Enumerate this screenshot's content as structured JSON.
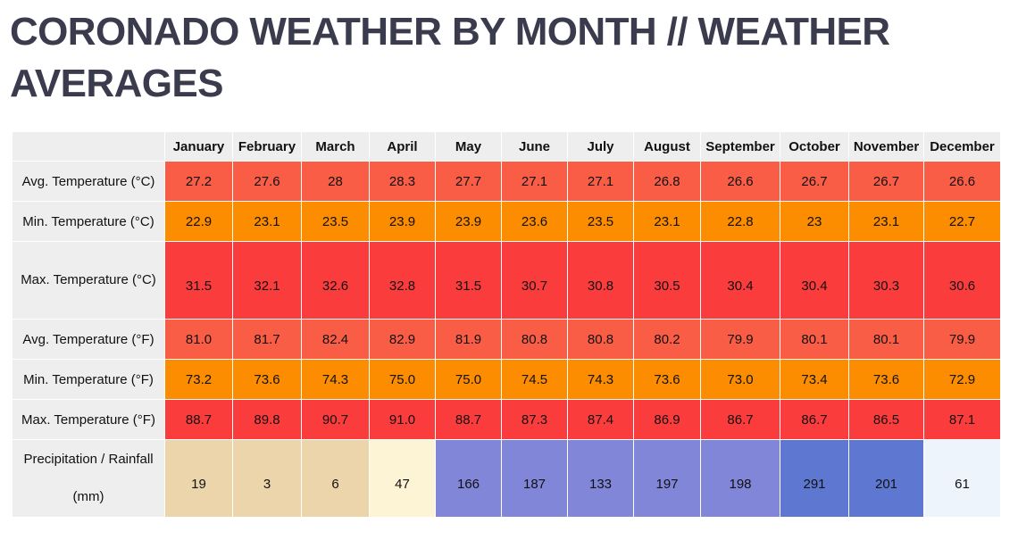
{
  "title": "CORONADO WEATHER BY MONTH // WEATHER AVERAGES",
  "months": [
    "January",
    "February",
    "March",
    "April",
    "May",
    "June",
    "July",
    "August",
    "September",
    "October",
    "November",
    "December"
  ],
  "colors": {
    "avg_temp": "#fa5d45",
    "min_temp": "#fc8c00",
    "max_temp": "#fb3c3d",
    "rain_dry": "#ecd5aa",
    "rain_light": "#fdf4d6",
    "rain_wet": "#8286d9",
    "rain_wettest": "#5e78d1",
    "rain_low": "#eef4fc",
    "header_bg": "#eeeeee",
    "title_color": "#3b3b4e"
  },
  "rows": [
    {
      "label": "Avg. Temperature (°C)",
      "values": [
        "27.2",
        "27.6",
        "28",
        "28.3",
        "27.7",
        "27.1",
        "27.1",
        "26.8",
        "26.6",
        "26.7",
        "26.7",
        "26.6"
      ],
      "colors": [
        "#fa5d45",
        "#fa5d45",
        "#fa5d45",
        "#fa5d45",
        "#fa5d45",
        "#fa5d45",
        "#fa5d45",
        "#fa5d45",
        "#fa5d45",
        "#fa5d45",
        "#fa5d45",
        "#fa5d45"
      ]
    },
    {
      "label": "Min. Temperature (°C)",
      "values": [
        "22.9",
        "23.1",
        "23.5",
        "23.9",
        "23.9",
        "23.6",
        "23.5",
        "23.1",
        "22.8",
        "23",
        "23.1",
        "22.7"
      ],
      "colors": [
        "#fc8c00",
        "#fc8c00",
        "#fc8c00",
        "#fc8c00",
        "#fc8c00",
        "#fc8c00",
        "#fc8c00",
        "#fc8c00",
        "#fc8c00",
        "#fc8c00",
        "#fc8c00",
        "#fc8c00"
      ]
    },
    {
      "label": "Max. Temperature (°C)",
      "values": [
        "31.5",
        "32.1",
        "32.6",
        "32.8",
        "31.5",
        "30.7",
        "30.8",
        "30.5",
        "30.4",
        "30.4",
        "30.3",
        "30.6"
      ],
      "colors": [
        "#fb3c3d",
        "#fb3c3d",
        "#fb3c3d",
        "#fb3c3d",
        "#fb3c3d",
        "#fb3c3d",
        "#fb3c3d",
        "#fb3c3d",
        "#fb3c3d",
        "#fb3c3d",
        "#fb3c3d",
        "#fb3c3d"
      ]
    },
    {
      "label": "Avg. Temperature (°F)",
      "values": [
        "81.0",
        "81.7",
        "82.4",
        "82.9",
        "81.9",
        "80.8",
        "80.8",
        "80.2",
        "79.9",
        "80.1",
        "80.1",
        "79.9"
      ],
      "colors": [
        "#fa5d45",
        "#fa5d45",
        "#fa5d45",
        "#fa5d45",
        "#fa5d45",
        "#fa5d45",
        "#fa5d45",
        "#fa5d45",
        "#fa5d45",
        "#fa5d45",
        "#fa5d45",
        "#fa5d45"
      ]
    },
    {
      "label": "Min. Temperature (°F)",
      "values": [
        "73.2",
        "73.6",
        "74.3",
        "75.0",
        "75.0",
        "74.5",
        "74.3",
        "73.6",
        "73.0",
        "73.4",
        "73.6",
        "72.9"
      ],
      "colors": [
        "#fc8c00",
        "#fc8c00",
        "#fc8c00",
        "#fc8c00",
        "#fc8c00",
        "#fc8c00",
        "#fc8c00",
        "#fc8c00",
        "#fc8c00",
        "#fc8c00",
        "#fc8c00",
        "#fc8c00"
      ]
    },
    {
      "label": "Max. Temperature (°F)",
      "values": [
        "88.7",
        "89.8",
        "90.7",
        "91.0",
        "88.7",
        "87.3",
        "87.4",
        "86.9",
        "86.7",
        "86.7",
        "86.5",
        "87.1"
      ],
      "colors": [
        "#fb3c3d",
        "#fb3c3d",
        "#fb3c3d",
        "#fb3c3d",
        "#fb3c3d",
        "#fb3c3d",
        "#fb3c3d",
        "#fb3c3d",
        "#fb3c3d",
        "#fb3c3d",
        "#fb3c3d",
        "#fb3c3d"
      ]
    },
    {
      "label": "Precipitation / Rainfall (mm)",
      "values": [
        "19",
        "3",
        "6",
        "47",
        "166",
        "187",
        "133",
        "197",
        "198",
        "291",
        "201",
        "61"
      ],
      "colors": [
        "#ecd5aa",
        "#ecd5aa",
        "#ecd5aa",
        "#fdf4d6",
        "#8286d9",
        "#8286d9",
        "#8286d9",
        "#8286d9",
        "#8286d9",
        "#5e78d1",
        "#5e78d1",
        "#eef4fc"
      ]
    }
  ]
}
